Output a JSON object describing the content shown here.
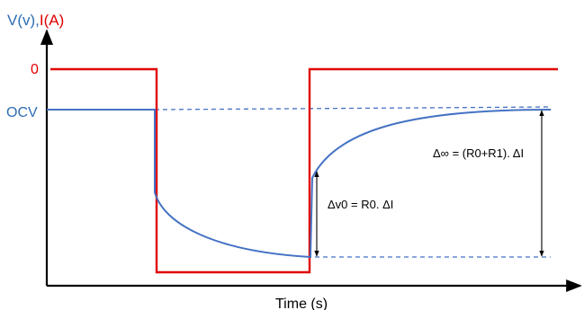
{
  "colors": {
    "voltage": "#4472C4",
    "current": "#E00000",
    "axis": "#000000",
    "annotation": "#000000"
  },
  "labels": {
    "axis_y_voltage": "V(v),",
    "axis_y_current": "I(A)",
    "axis_x": "Time (s)",
    "zero_level": "0",
    "ocv_level": "OCV",
    "delta_v0": "Δv0 = R0. ΔI",
    "delta_inf": "Δ∞ = (R0+R1). ΔI"
  }
}
